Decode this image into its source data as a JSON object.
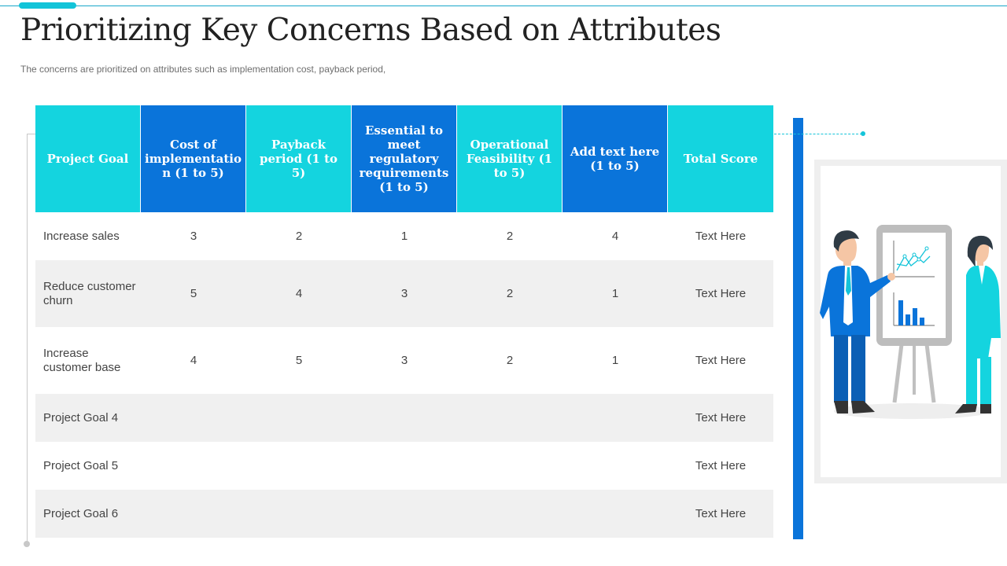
{
  "title": "Prioritizing Key Concerns Based on Attributes",
  "subtitle": "The concerns are prioritized on attributes such as implementation cost, payback period,",
  "colors": {
    "cyan": "#14d4df",
    "blue": "#0a74da",
    "row_alt": "#f0f0f0"
  },
  "table": {
    "headers": [
      "Project Goal",
      "Cost of implementatio n (1 to 5)",
      "Payback period (1 to 5)",
      "Essential to meet regulatory requirements (1 to 5)",
      "Operational Feasibility (1 to 5)",
      "Add text here (1 to 5)",
      "Total Score"
    ],
    "rows": [
      [
        "Increase sales",
        "3",
        "2",
        "1",
        "2",
        "4",
        "Text Here"
      ],
      [
        "Reduce customer churn",
        "5",
        "4",
        "3",
        "2",
        "1",
        "Text Here"
      ],
      [
        "Increase customer base",
        "4",
        "5",
        "3",
        "2",
        "1",
        "Text Here"
      ],
      [
        "Project Goal 4",
        "",
        "",
        "",
        "",
        "",
        "Text Here"
      ],
      [
        "Project Goal 5",
        "",
        "",
        "",
        "",
        "",
        "Text Here"
      ],
      [
        "Project Goal 6",
        "",
        "",
        "",
        "",
        "",
        "Text Here"
      ]
    ]
  },
  "illustration": {
    "icon": "presentation-illustration-icon"
  }
}
